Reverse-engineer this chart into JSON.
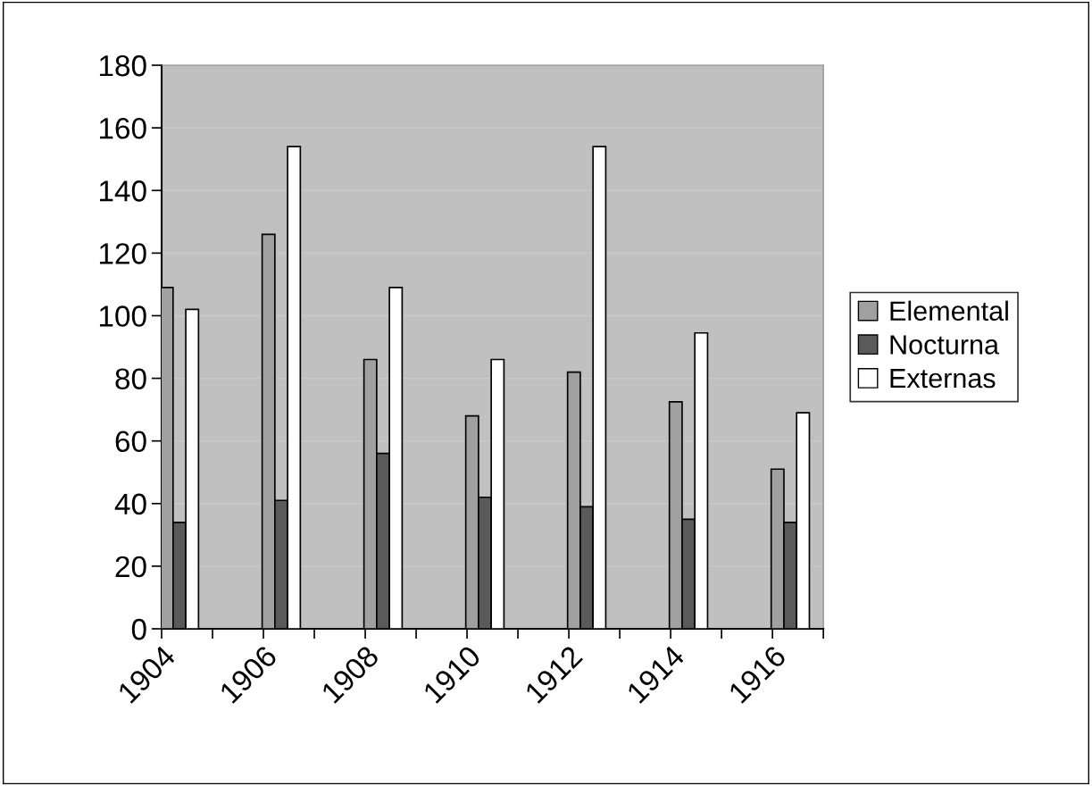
{
  "chart_data": {
    "type": "bar",
    "x": [
      1904,
      1906,
      1908,
      1910,
      1912,
      1914,
      1916
    ],
    "series": [
      {
        "name": "Elemental",
        "color": "#a0a0a0",
        "values": [
          109,
          126,
          86,
          68,
          82,
          72.5,
          51
        ]
      },
      {
        "name": "Nocturna",
        "color": "#5a5a5a",
        "values": [
          34,
          41,
          56,
          42,
          39,
          35,
          34
        ]
      },
      {
        "name": "Externas",
        "color": "#ffffff",
        "values": [
          102,
          154,
          109,
          86,
          154,
          94.5,
          69
        ]
      }
    ],
    "xlim": [
      1904,
      1917
    ],
    "xticks": [
      1904,
      {
        "value": 1905,
        "label": null
      },
      1906,
      {
        "value": 1907,
        "label": null
      },
      1908,
      {
        "value": 1909,
        "label": null
      },
      1910,
      {
        "value": 1911,
        "label": null
      },
      1912,
      {
        "value": 1913,
        "label": null
      },
      1914,
      {
        "value": 1915,
        "label": null
      },
      1916,
      {
        "value": 1917,
        "label": null
      }
    ],
    "ylim": [
      0,
      180
    ],
    "yticks": [
      0,
      20,
      40,
      60,
      80,
      100,
      120,
      140,
      160,
      180
    ],
    "grid": "y",
    "legend": "right"
  }
}
